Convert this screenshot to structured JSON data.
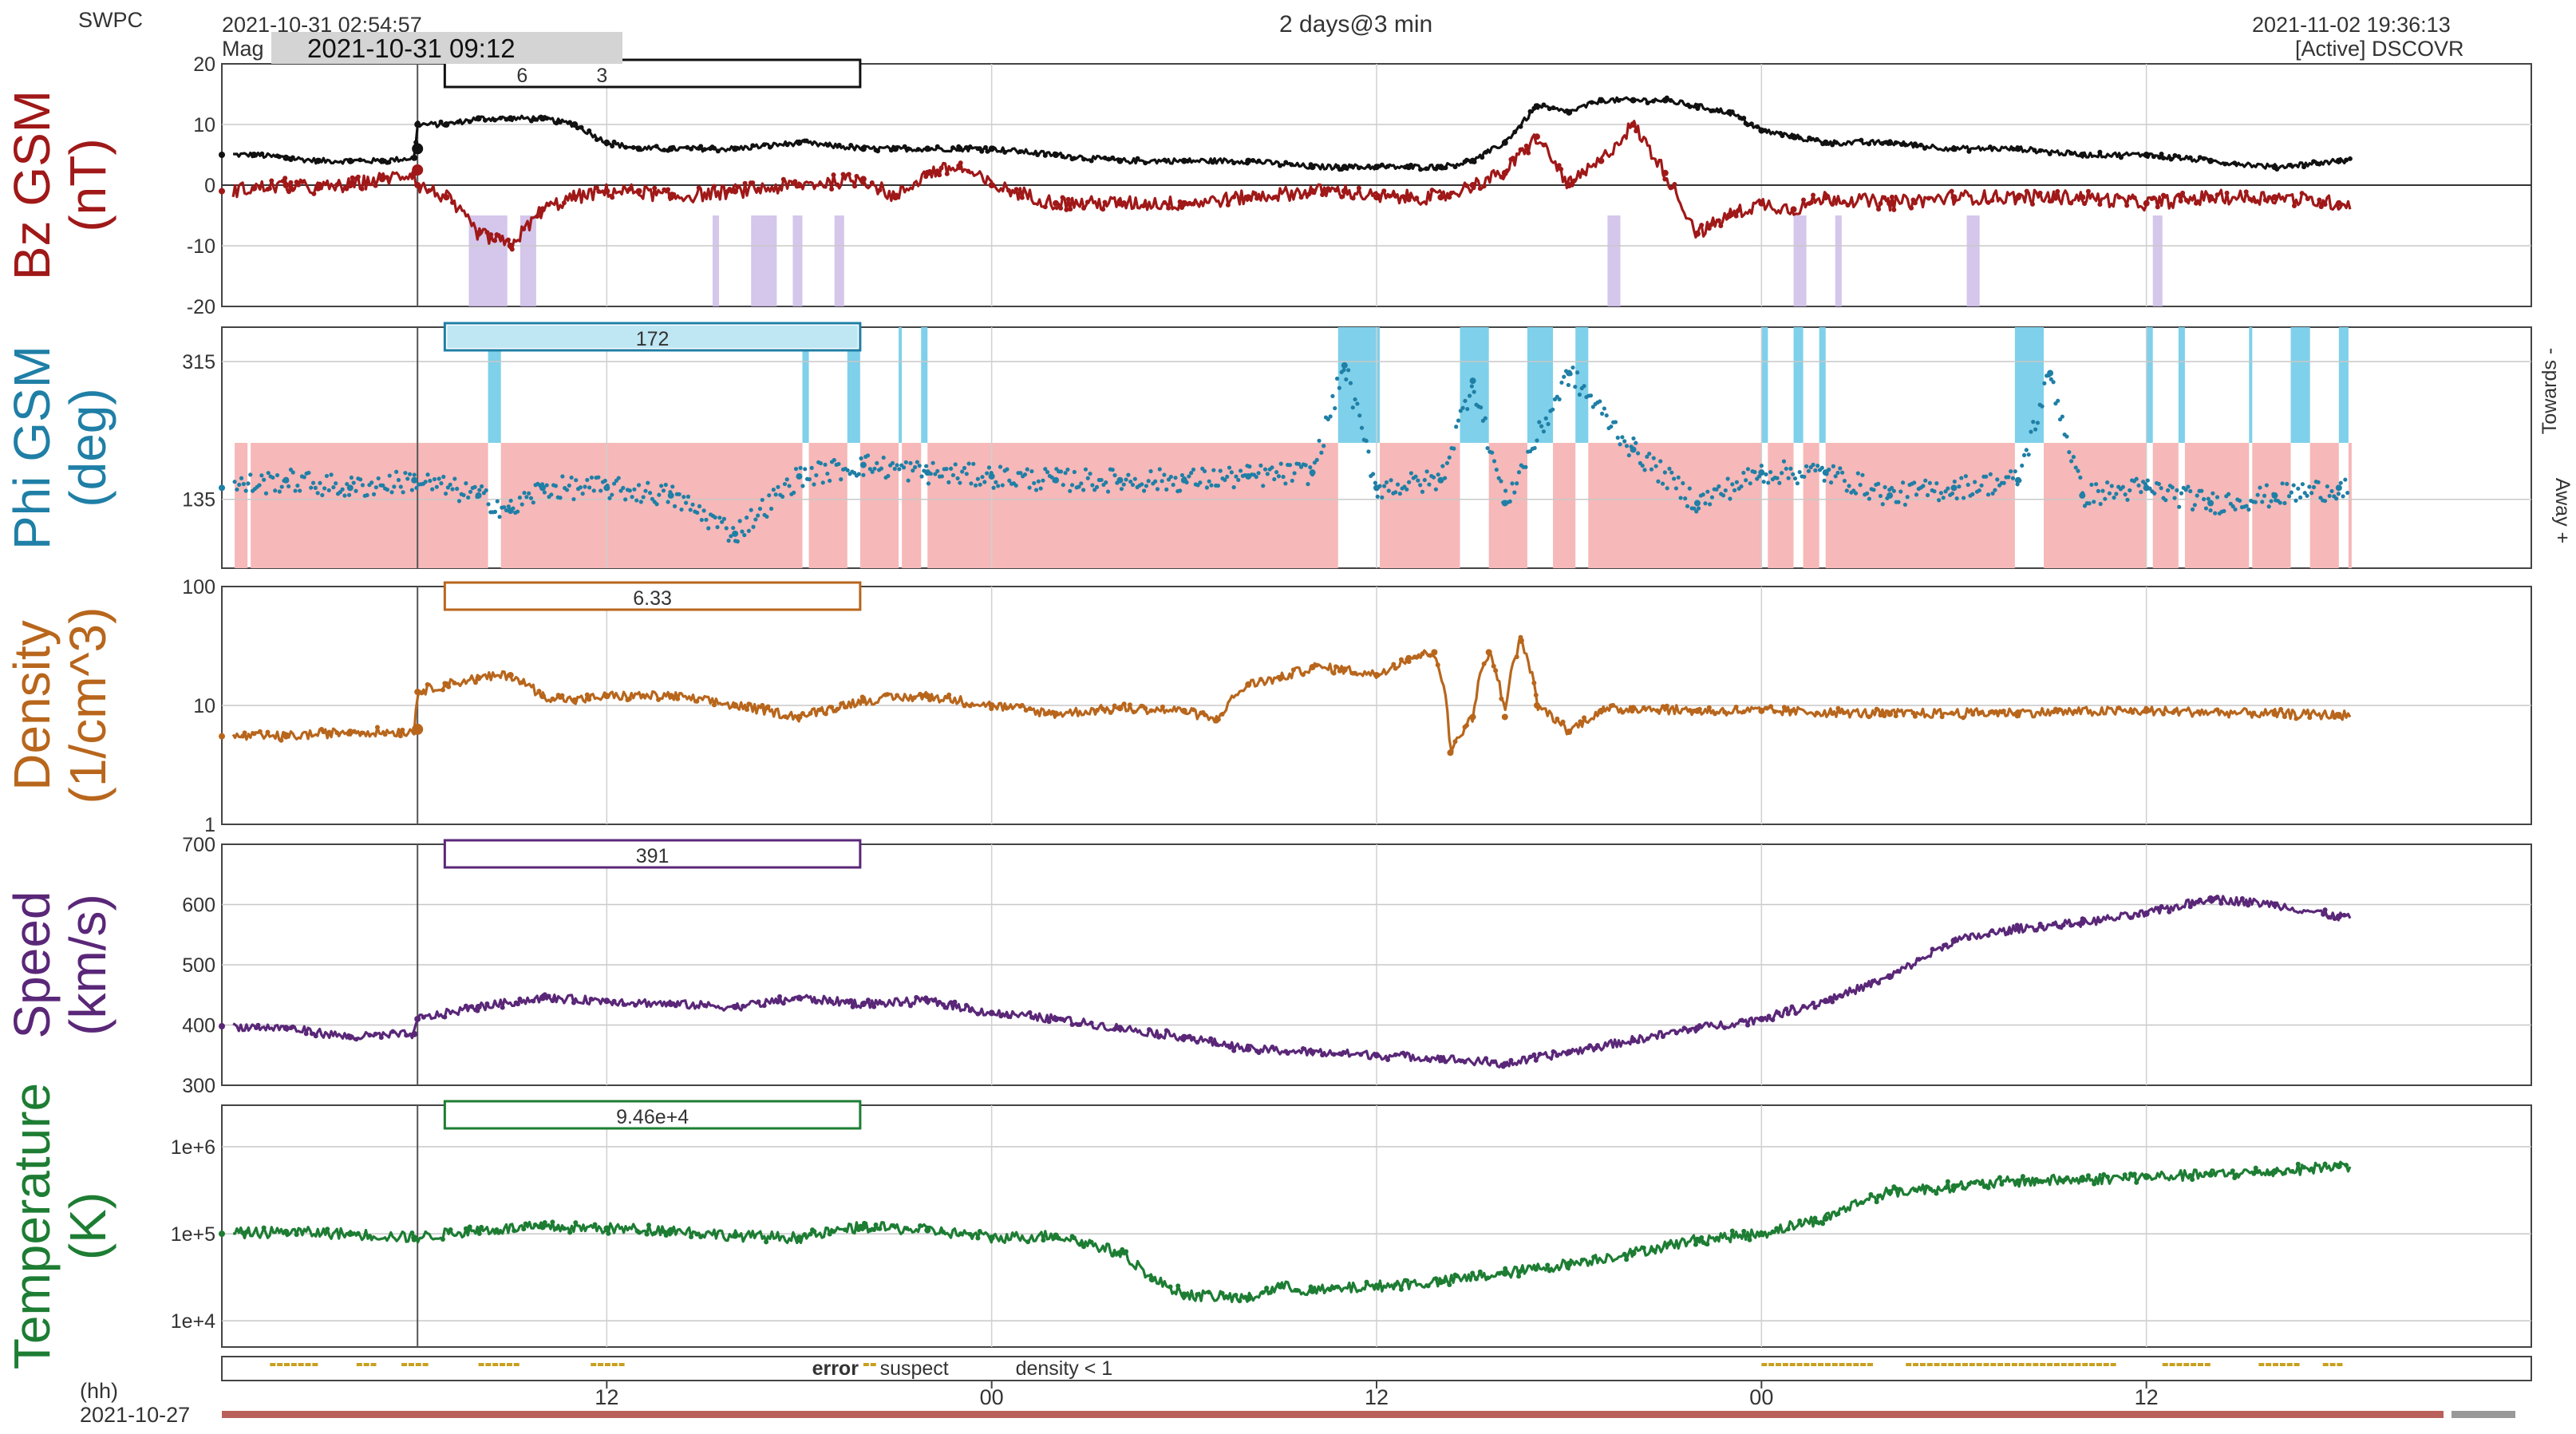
{
  "header": {
    "source": "SWPC",
    "start_time": "2021-10-31 02:54:57",
    "mag_prefix": "Mag",
    "cursor_time": "2021-10-31 09:12",
    "span": "2 days@3 min",
    "end_time": "2021-11-02 19:36:13",
    "spacecraft": "[Active] DSCOVR"
  },
  "colors": {
    "bt": "#111111",
    "bz": "#a01818",
    "phi": "#1f7fa6",
    "phi_toward_band": "#7fd0ea",
    "phi_away_band": "#f6b8b8",
    "density": "#b8661c",
    "speed": "#5a2778",
    "temperature": "#1d7d33",
    "southward_bz_band": "#cbb8e6",
    "error": "#cc2222",
    "suspect": "#c8a020",
    "density_lt1": "#d08040"
  },
  "xaxis": {
    "unit_label": "(hh)",
    "start_date": "2021-10-27",
    "ticks": [
      "12",
      "00",
      "12",
      "00",
      "12"
    ],
    "tick_hours": [
      12,
      24,
      36,
      48,
      60
    ]
  },
  "legend": {
    "error": "error",
    "suspect": "suspect",
    "density": "density < 1"
  },
  "chart_data": [
    {
      "type": "line",
      "panel": "bz",
      "ylabel_line1": "Bz GSM",
      "ylabel_line2": "(nT)",
      "ylim": [
        -20,
        20
      ],
      "yticks": [
        "20",
        "10",
        "0",
        "-10",
        "-20"
      ],
      "readout": {
        "bt": "6",
        "bz": "3"
      },
      "x_hours": [
        0,
        1,
        2,
        3,
        4,
        5,
        6,
        6.1,
        7,
        8,
        9,
        10,
        11,
        12,
        13,
        14,
        16,
        18,
        20,
        21,
        22,
        23,
        24,
        26,
        28,
        30,
        32,
        34,
        35,
        36,
        37,
        38,
        39,
        40,
        41,
        42,
        43,
        44,
        45,
        46,
        47,
        48,
        49,
        50,
        52,
        54,
        56,
        58,
        60,
        62,
        64,
        66
      ],
      "series": [
        {
          "name": "Bt",
          "values": [
            5,
            5,
            4.5,
            4,
            4,
            4,
            4.5,
            10,
            10,
            11,
            11,
            11,
            10,
            7,
            6,
            6,
            6,
            7,
            6,
            6,
            6,
            6,
            6,
            5,
            4,
            4,
            4,
            3,
            3,
            3,
            3,
            3,
            4,
            7,
            13,
            12,
            14,
            14,
            14,
            13,
            12,
            9,
            8,
            7,
            7,
            6,
            6,
            5,
            5,
            4,
            3,
            4
          ]
        },
        {
          "name": "Bz",
          "values": [
            -1,
            -0.5,
            0,
            -0.5,
            0,
            1,
            2,
            0,
            -2,
            -8,
            -10,
            -4,
            -2,
            -1,
            -1,
            -2,
            -1,
            0,
            1,
            -2,
            2,
            3,
            0,
            -3,
            -3,
            -3,
            -2,
            -1,
            -1,
            -2,
            -2,
            -2,
            0,
            2,
            8,
            0,
            4,
            10,
            2,
            -8,
            -5,
            -3,
            -4,
            -2,
            -3,
            -2,
            -2,
            -2,
            -3,
            -2,
            -2,
            -3
          ]
        }
      ],
      "southward_bands_hours": [
        [
          7.7,
          8.9
        ],
        [
          9.3,
          9.8
        ],
        [
          15.3,
          15.5
        ],
        [
          16.5,
          17.3
        ],
        [
          17.8,
          18.1
        ],
        [
          19.1,
          19.4
        ],
        [
          43.2,
          43.6
        ],
        [
          49.0,
          49.4
        ],
        [
          50.3,
          50.5
        ],
        [
          54.4,
          54.8
        ],
        [
          60.2,
          60.5
        ]
      ]
    },
    {
      "type": "scatter",
      "panel": "phi",
      "ylabel_line1": "Phi GSM",
      "ylabel_line2": "(deg)",
      "ylim": [
        45,
        360
      ],
      "yticks": [
        "315",
        "135"
      ],
      "ytick_values": [
        315,
        135
      ],
      "side_labels": {
        "toward": "Towards -",
        "away": "Away +"
      },
      "readout": "172",
      "x_hours": [
        0,
        2,
        4,
        6,
        8,
        9,
        10,
        12,
        14,
        16,
        18,
        20,
        22,
        24,
        26,
        28,
        30,
        32,
        34,
        35,
        36,
        38,
        39,
        40,
        42,
        44,
        46,
        48,
        50,
        52,
        54,
        56,
        57,
        58,
        60,
        62,
        64,
        66
      ],
      "values": [
        150,
        160,
        150,
        160,
        140,
        120,
        150,
        150,
        140,
        90,
        165,
        180,
        170,
        165,
        160,
        160,
        160,
        165,
        170,
        310,
        150,
        160,
        290,
        130,
        300,
        200,
        130,
        170,
        170,
        140,
        150,
        160,
        300,
        140,
        150,
        130,
        140,
        150
      ],
      "toward_bands_hours": [
        [
          8.3,
          8.7
        ],
        [
          18.1,
          18.3
        ],
        [
          19.5,
          19.9
        ],
        [
          21.1,
          21.2
        ],
        [
          21.8,
          22.0
        ],
        [
          34.8,
          36.1
        ],
        [
          38.6,
          39.5
        ],
        [
          40.7,
          41.5
        ],
        [
          42.2,
          42.6
        ],
        [
          48.0,
          48.2
        ],
        [
          49.0,
          49.3
        ],
        [
          49.8,
          50.0
        ],
        [
          55.9,
          56.8
        ],
        [
          60.0,
          60.2
        ],
        [
          61.0,
          61.2
        ],
        [
          63.2,
          63.3
        ],
        [
          64.5,
          65.1
        ],
        [
          66.0,
          66.3
        ]
      ],
      "away_gaps_hours": [
        [
          0.8,
          0.9
        ],
        [
          8.3,
          8.7
        ],
        [
          18.1,
          18.3
        ],
        [
          19.5,
          19.9
        ],
        [
          21.1,
          21.2
        ],
        [
          21.8,
          22.0
        ],
        [
          34.8,
          36.1
        ],
        [
          38.6,
          39.5
        ],
        [
          40.7,
          41.5
        ],
        [
          42.2,
          42.6
        ],
        [
          48.0,
          48.2
        ],
        [
          49.0,
          49.3
        ],
        [
          49.8,
          50.0
        ],
        [
          55.9,
          56.8
        ],
        [
          60.0,
          60.2
        ],
        [
          61.0,
          61.2
        ],
        [
          63.2,
          63.3
        ],
        [
          64.5,
          65.1
        ],
        [
          66.0,
          66.3
        ]
      ]
    },
    {
      "type": "line",
      "panel": "density",
      "yscale": "log",
      "ylabel_line1": "Density",
      "ylabel_line2": "(1/cm^3)",
      "ylim": [
        1,
        100
      ],
      "yticks": [
        "100",
        "10",
        "1"
      ],
      "ytick_values": [
        100,
        10,
        1
      ],
      "readout": "6.33",
      "x_hours": [
        0,
        2,
        4,
        6,
        6.1,
        7,
        8,
        9,
        10,
        11,
        12,
        14,
        16,
        18,
        20,
        22,
        24,
        26,
        28,
        30,
        31,
        32,
        33,
        34,
        35,
        36,
        37,
        37.8,
        38.3,
        39,
        39.5,
        40,
        40.5,
        41,
        42,
        43,
        44,
        46,
        48,
        52,
        56,
        60,
        64,
        66
      ],
      "values": [
        5.5,
        5.5,
        6,
        6,
        13,
        15,
        17,
        18,
        12,
        11,
        12,
        12,
        10,
        8,
        11,
        12,
        10,
        8.5,
        9.5,
        9,
        7.5,
        15,
        17,
        21,
        20,
        18,
        25,
        28,
        4,
        8,
        28,
        8,
        35,
        10,
        6,
        9,
        9.5,
        9,
        9,
        8.5,
        8.7,
        9,
        8.5,
        8.3
      ]
    },
    {
      "type": "line",
      "panel": "speed",
      "ylabel_line1": "Speed",
      "ylabel_line2": "(km/s)",
      "ylim": [
        300,
        700
      ],
      "yticks": [
        "700",
        "600",
        "500",
        "400",
        "300"
      ],
      "readout": "391",
      "x_hours": [
        0,
        2,
        4,
        6,
        6.1,
        8,
        10,
        12,
        14,
        16,
        18,
        20,
        22,
        24,
        26,
        28,
        30,
        32,
        34,
        36,
        38,
        40,
        42,
        44,
        46,
        48,
        50,
        52,
        54,
        56,
        58,
        60,
        62,
        64,
        66
      ],
      "values": [
        398,
        395,
        380,
        385,
        410,
        430,
        445,
        440,
        435,
        430,
        445,
        435,
        440,
        420,
        410,
        395,
        380,
        360,
        355,
        350,
        345,
        335,
        355,
        375,
        395,
        410,
        440,
        480,
        540,
        560,
        570,
        585,
        610,
        600,
        580
      ]
    },
    {
      "type": "line",
      "panel": "temperature",
      "yscale": "log",
      "ylabel_line1": "Temperature",
      "ylabel_line2": "(K)",
      "ylim": [
        5000,
        3000000
      ],
      "yticks": [
        "1e+6",
        "1e+5",
        "1e+4"
      ],
      "ytick_values": [
        1000000,
        100000,
        10000
      ],
      "readout": "9.46e+4",
      "x_hours": [
        0,
        2,
        4,
        6,
        8,
        10,
        12,
        14,
        16,
        18,
        20,
        22,
        24,
        26,
        28,
        29,
        30,
        32,
        33,
        34,
        36,
        38,
        40,
        42,
        44,
        46,
        48,
        50,
        52,
        54,
        56,
        58,
        60,
        62,
        64,
        66
      ],
      "values": [
        100000,
        105000,
        100000,
        90000,
        110000,
        120000,
        115000,
        110000,
        95000,
        90000,
        120000,
        110000,
        90000,
        95000,
        60000,
        30000,
        20000,
        18000,
        25000,
        22000,
        25000,
        28000,
        35000,
        45000,
        60000,
        85000,
        100000,
        150000,
        300000,
        350000,
        400000,
        420000,
        450000,
        480000,
        520000,
        600000
      ]
    }
  ]
}
